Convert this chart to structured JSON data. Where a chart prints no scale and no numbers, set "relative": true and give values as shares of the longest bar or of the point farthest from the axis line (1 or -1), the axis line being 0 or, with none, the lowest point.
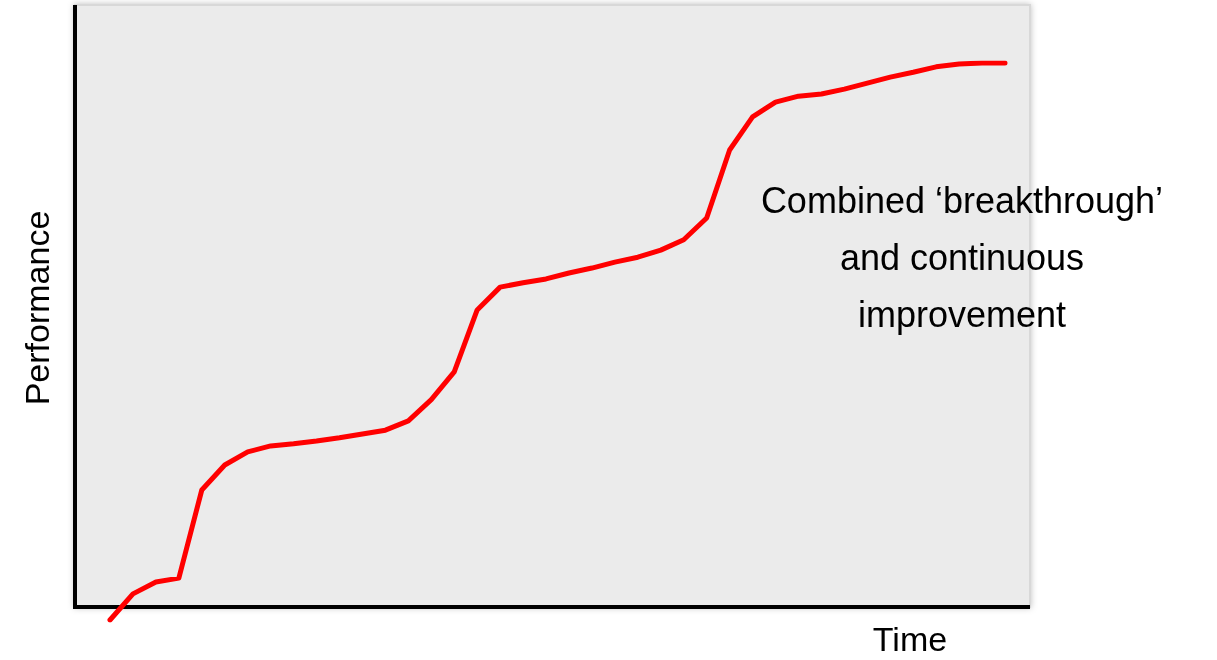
{
  "chart_data": {
    "type": "line",
    "relative": true,
    "xlabel": "Time",
    "ylabel": "Performance",
    "annotations": [
      "Combined ‘breakthrough’ and continuous improvement"
    ],
    "marker": "none",
    "line_style": "solid",
    "categories": [
      null,
      null,
      null,
      null,
      null,
      null,
      null,
      null,
      null,
      null,
      null,
      null,
      null,
      null,
      null,
      null,
      null,
      null,
      null,
      null,
      null,
      null,
      null,
      null,
      null,
      null,
      null,
      null,
      null,
      null,
      null,
      null,
      null,
      null,
      null,
      null,
      null,
      null,
      null,
      null
    ],
    "series": [
      {
        "color": "#ff0000",
        "values": [
          -0.024,
          0.024,
          0.046,
          0.053,
          0.215,
          0.261,
          0.285,
          0.296,
          0.3,
          0.305,
          0.311,
          0.318,
          0.325,
          0.342,
          0.381,
          0.432,
          0.546,
          0.588,
          0.596,
          0.603,
          0.614,
          0.623,
          0.634,
          0.643,
          0.656,
          0.675,
          0.715,
          0.84,
          0.901,
          0.928,
          0.939,
          0.943,
          0.952,
          0.963,
          0.974,
          0.983,
          0.993,
          0.998,
          1,
          1
        ]
      }
    ]
  }
}
